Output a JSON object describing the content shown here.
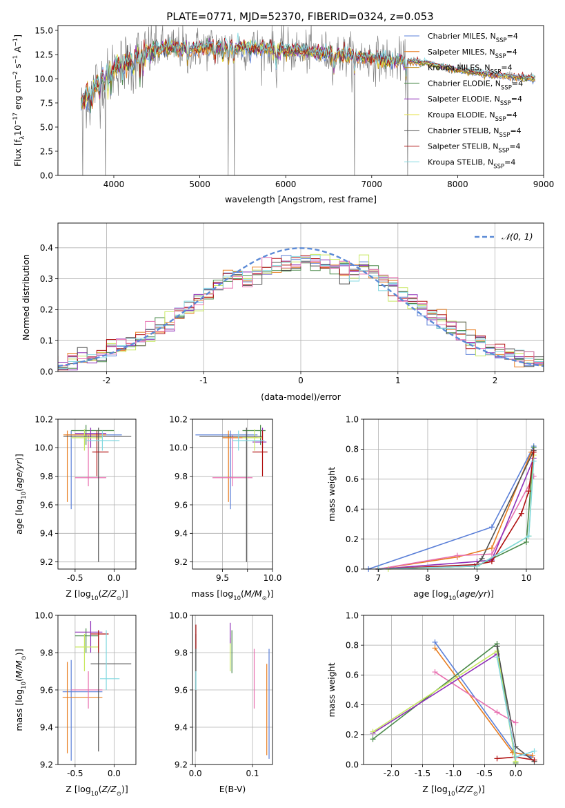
{
  "figure_title": "PLATE=0771, MJD=52370, FIBERID=0324, z=0.053",
  "colors": {
    "Chabrier MILES": "#5a7fd8",
    "Salpeter MILES": "#e87c1e",
    "Kroupa MILES": "#b8860b",
    "Chabrier ELODIE": "#4a8a4a",
    "Salpeter ELODIE": "#8e2fb8",
    "Kroupa ELODIE": "#e6e040",
    "Chabrier STELIB": "#505050",
    "Salpeter STELIB": "#b01010",
    "Kroupa STELIB": "#80d8e0",
    "pink": "#e870b0",
    "lime": "#c8e860",
    "data": "#808080"
  },
  "chart_data": [
    {
      "id": "spectrum",
      "type": "line",
      "xlabel": "wavelength [Angstrom, rest frame]",
      "ylabel": "Flux [f_λ 10^-17 erg cm^-2 s^-1 A^-1]",
      "xlim": [
        3350,
        9000
      ],
      "ylim": [
        0,
        15.5
      ],
      "xticks": [
        4000,
        5000,
        6000,
        7000,
        8000,
        9000
      ],
      "yticks": [
        0.0,
        2.5,
        5.0,
        7.5,
        10.0,
        12.5,
        15.0
      ],
      "wave_range": [
        3620,
        8900
      ],
      "approx_continuum": [
        [
          3620,
          7.5
        ],
        [
          3800,
          9.5
        ],
        [
          4000,
          11.2
        ],
        [
          4300,
          12.4
        ],
        [
          4600,
          13.3
        ],
        [
          4900,
          13.1
        ],
        [
          5200,
          13.4
        ],
        [
          5600,
          13.2
        ],
        [
          6000,
          12.9
        ],
        [
          6400,
          12.7
        ],
        [
          6800,
          12.3
        ],
        [
          7200,
          11.9
        ],
        [
          7600,
          11.7
        ],
        [
          8000,
          10.9
        ],
        [
          8400,
          10.4
        ],
        [
          8900,
          10.0
        ]
      ],
      "legend": [
        {
          "imf": "Chabrier",
          "lib": "MILES",
          "nssp": "4"
        },
        {
          "imf": "Salpeter",
          "lib": "MILES",
          "nssp": "4"
        },
        {
          "imf": "Kroupa",
          "lib": "MILES",
          "nssp": "4"
        },
        {
          "imf": "Chabrier",
          "lib": "ELODIE",
          "nssp": "4"
        },
        {
          "imf": "Salpeter",
          "lib": "ELODIE",
          "nssp": "4"
        },
        {
          "imf": "Kroupa",
          "lib": "ELODIE",
          "nssp": "4"
        },
        {
          "imf": "Chabrier",
          "lib": "STELIB",
          "nssp": "4"
        },
        {
          "imf": "Salpeter",
          "lib": "STELIB",
          "nssp": "4"
        },
        {
          "imf": "Kroupa",
          "lib": "STELIB",
          "nssp": "4"
        }
      ]
    },
    {
      "id": "residuals",
      "type": "step",
      "xlabel": "(data-model)/error",
      "ylabel": "Normed distribution",
      "xlim": [
        -2.5,
        2.5
      ],
      "ylim": [
        0,
        0.48
      ],
      "xticks": [
        -2,
        -1,
        0,
        1,
        2
      ],
      "yticks": [
        0.0,
        0.1,
        0.2,
        0.3,
        0.4
      ],
      "grid": true,
      "legend_label": "N(0,1)",
      "legend_position": "top-right"
    },
    {
      "id": "age_vs_Z",
      "type": "errorbar",
      "xlabel": "Z [log10(Z/Z_sun)]",
      "ylabel": "age [log10(age/yr)]",
      "xlim": [
        -0.72,
        0.28
      ],
      "ylim": [
        9.15,
        10.2
      ],
      "xticks": [
        -0.5,
        0.0
      ],
      "yticks": [
        9.2,
        9.4,
        9.6,
        9.8,
        10.0,
        10.2
      ],
      "grid": true,
      "points": [
        {
          "c": "#5a7fd8",
          "x": -0.55,
          "xe": [
            -0.62,
            0.1
          ],
          "y": 10.09,
          "ye": [
            9.57,
            10.12
          ]
        },
        {
          "c": "#e87c1e",
          "x": -0.6,
          "xe": [
            -0.65,
            -0.1
          ],
          "y": 10.09,
          "ye": [
            9.62,
            10.12
          ]
        },
        {
          "c": "#e870b0",
          "x": -0.33,
          "xe": [
            -0.5,
            -0.1
          ],
          "y": 9.79,
          "ye": [
            9.73,
            10.09
          ]
        },
        {
          "c": "#4a8a4a",
          "x": -0.36,
          "xe": [
            -0.55,
            0.0
          ],
          "y": 10.12,
          "ye": [
            10.02,
            10.16
          ]
        },
        {
          "c": "#8e2fb8",
          "x": -0.3,
          "xe": [
            -0.5,
            -0.1
          ],
          "y": 10.1,
          "ye": [
            10.0,
            10.14
          ]
        },
        {
          "c": "#c8e860",
          "x": -0.38,
          "xe": [
            -0.55,
            -0.15
          ],
          "y": 10.07,
          "ye": [
            9.98,
            10.13
          ]
        },
        {
          "c": "#505050",
          "x": -0.2,
          "xe": [
            -0.65,
            0.22
          ],
          "y": 10.08,
          "ye": [
            9.2,
            10.14
          ]
        },
        {
          "c": "#b01010",
          "x": -0.22,
          "xe": [
            -0.28,
            -0.07
          ],
          "y": 9.97,
          "ye": [
            9.8,
            10.12
          ]
        },
        {
          "c": "#80d8e0",
          "x": -0.15,
          "xe": [
            -0.35,
            0.07
          ],
          "y": 10.05,
          "ye": [
            9.98,
            10.12
          ]
        }
      ]
    },
    {
      "id": "age_vs_mass",
      "type": "errorbar",
      "xlabel": "mass [log10(M/M_sun)]",
      "ylabel": "",
      "xlim": [
        9.2,
        10.0
      ],
      "ylim": [
        9.15,
        10.2
      ],
      "xticks": [
        9.5,
        9.75,
        10.0
      ],
      "xticklabels": [
        "9.5",
        "",
        "10.0"
      ],
      "yticks": [
        9.2,
        9.4,
        9.6,
        9.8,
        10.0,
        10.2
      ],
      "grid": true,
      "points": [
        {
          "c": "#5a7fd8",
          "x": 9.58,
          "xe": [
            9.23,
            9.85
          ],
          "y": 10.09,
          "ye": [
            9.57,
            10.12
          ]
        },
        {
          "c": "#e87c1e",
          "x": 9.56,
          "xe": [
            9.5,
            9.85
          ],
          "y": 10.07,
          "ye": [
            9.62,
            10.12
          ]
        },
        {
          "c": "#e870b0",
          "x": 9.6,
          "xe": [
            9.4,
            9.8
          ],
          "y": 9.79,
          "ye": [
            9.73,
            10.09
          ]
        },
        {
          "c": "#4a8a4a",
          "x": 9.88,
          "xe": [
            9.7,
            9.93
          ],
          "y": 10.12,
          "ye": [
            10.02,
            10.16
          ]
        },
        {
          "c": "#8e2fb8",
          "x": 9.9,
          "xe": [
            9.8,
            9.94
          ],
          "y": 10.04,
          "ye": [
            10.0,
            10.14
          ]
        },
        {
          "c": "#c8e860",
          "x": 9.82,
          "xe": [
            9.7,
            9.9
          ],
          "y": 10.07,
          "ye": [
            9.98,
            10.13
          ]
        },
        {
          "c": "#505050",
          "x": 9.74,
          "xe": [
            9.27,
            9.9
          ],
          "y": 10.08,
          "ye": [
            9.2,
            10.14
          ]
        },
        {
          "c": "#b01010",
          "x": 9.9,
          "xe": [
            9.8,
            9.95
          ],
          "y": 9.97,
          "ye": [
            9.8,
            10.12
          ]
        },
        {
          "c": "#80d8e0",
          "x": 9.66,
          "xe": [
            9.6,
            9.92
          ],
          "y": 10.05,
          "ye": [
            9.98,
            10.12
          ]
        }
      ]
    },
    {
      "id": "mass_weight_vs_age",
      "type": "line",
      "xlabel": "age [log10(age/yr)]",
      "ylabel": "mass weight",
      "xlim": [
        6.7,
        10.35
      ],
      "ylim": [
        0,
        1.0
      ],
      "xticks": [
        7,
        8,
        9,
        10
      ],
      "yticks": [
        0.0,
        0.2,
        0.4,
        0.6,
        0.8,
        1.0
      ],
      "grid": true,
      "series": [
        {
          "c": "#5a7fd8",
          "points": [
            [
              6.8,
              0.0
            ],
            [
              9.3,
              0.28
            ],
            [
              10.15,
              0.82
            ]
          ]
        },
        {
          "c": "#e87c1e",
          "points": [
            [
              7.0,
              0.0
            ],
            [
              8.6,
              0.08
            ],
            [
              9.3,
              0.14
            ],
            [
              10.1,
              0.78
            ]
          ]
        },
        {
          "c": "#e870b0",
          "points": [
            [
              7.0,
              0.0
            ],
            [
              8.6,
              0.09
            ],
            [
              9.3,
              0.1
            ],
            [
              10.15,
              0.62
            ]
          ]
        },
        {
          "c": "#4a8a4a",
          "points": [
            [
              7.0,
              0.0
            ],
            [
              9.0,
              0.02
            ],
            [
              10.0,
              0.18
            ],
            [
              10.15,
              0.81
            ]
          ]
        },
        {
          "c": "#8e2fb8",
          "points": [
            [
              7.0,
              0.0
            ],
            [
              9.0,
              0.05
            ],
            [
              9.3,
              0.06
            ],
            [
              10.15,
              0.74
            ]
          ]
        },
        {
          "c": "#c8e860",
          "points": [
            [
              7.2,
              0.0
            ],
            [
              9.0,
              0.02
            ],
            [
              10.05,
              0.22
            ],
            [
              10.15,
              0.76
            ]
          ]
        },
        {
          "c": "#505050",
          "points": [
            [
              7.0,
              0.0
            ],
            [
              8.95,
              0.02
            ],
            [
              9.1,
              0.07
            ],
            [
              10.15,
              0.79
            ]
          ]
        },
        {
          "c": "#b01010",
          "points": [
            [
              7.0,
              0.0
            ],
            [
              9.0,
              0.03
            ],
            [
              9.3,
              0.05
            ],
            [
              9.9,
              0.37
            ],
            [
              10.05,
              0.52
            ],
            [
              10.15,
              0.78
            ]
          ]
        },
        {
          "c": "#80d8e0",
          "points": [
            [
              7.0,
              0.0
            ],
            [
              9.0,
              0.02
            ],
            [
              10.05,
              0.22
            ],
            [
              10.15,
              0.72
            ]
          ]
        }
      ]
    },
    {
      "id": "mass_vs_Z",
      "type": "errorbar",
      "xlabel": "Z [log10(Z/Z_sun)]",
      "ylabel": "mass [log10(M/M_sun)]",
      "xlim": [
        -0.72,
        0.28
      ],
      "ylim": [
        9.2,
        10.0
      ],
      "xticks": [
        -0.5,
        0.0
      ],
      "yticks": [
        9.2,
        9.4,
        9.6,
        9.8,
        10.0
      ],
      "grid": true,
      "points": [
        {
          "c": "#5a7fd8",
          "x": -0.55,
          "xe": [
            -0.66,
            -0.15
          ],
          "y": 9.59,
          "ye": [
            9.22,
            9.76
          ]
        },
        {
          "c": "#e87c1e",
          "x": -0.6,
          "xe": [
            -0.66,
            -0.15
          ],
          "y": 9.56,
          "ye": [
            9.26,
            9.75
          ]
        },
        {
          "c": "#e870b0",
          "x": -0.33,
          "xe": [
            -0.55,
            -0.15
          ],
          "y": 9.6,
          "ye": [
            9.5,
            9.7
          ]
        },
        {
          "c": "#4a8a4a",
          "x": -0.36,
          "xe": [
            -0.5,
            -0.2
          ],
          "y": 9.89,
          "ye": [
            9.8,
            9.93
          ]
        },
        {
          "c": "#8e2fb8",
          "x": -0.3,
          "xe": [
            -0.5,
            -0.15
          ],
          "y": 9.91,
          "ye": [
            9.8,
            9.97
          ]
        },
        {
          "c": "#c8e860",
          "x": -0.38,
          "xe": [
            -0.5,
            -0.2
          ],
          "y": 9.83,
          "ye": [
            9.7,
            9.9
          ]
        },
        {
          "c": "#505050",
          "x": -0.2,
          "xe": [
            -0.3,
            0.22
          ],
          "y": 9.74,
          "ye": [
            9.27,
            9.92
          ]
        },
        {
          "c": "#b01010",
          "x": -0.2,
          "xe": [
            -0.3,
            -0.07
          ],
          "y": 9.9,
          "ye": [
            9.8,
            9.92
          ]
        },
        {
          "c": "#80d8e0",
          "x": -0.1,
          "xe": [
            -0.18,
            0.07
          ],
          "y": 9.66,
          "ye": [
            9.6,
            9.92
          ]
        }
      ]
    },
    {
      "id": "mass_vs_ebv",
      "type": "errorbar",
      "xlabel": "E(B-V)",
      "ylabel": "",
      "xlim": [
        -0.005,
        0.135
      ],
      "ylim": [
        9.2,
        10.0
      ],
      "xticks": [
        0.0,
        0.1
      ],
      "yticks": [
        9.2,
        9.4,
        9.6,
        9.8,
        10.0
      ],
      "grid": true,
      "points": [
        {
          "c": "#505050",
          "x": 0.001,
          "y": 9.6,
          "ye": [
            9.27,
            9.9
          ]
        },
        {
          "c": "#b01010",
          "x": 0.001,
          "y": 9.9,
          "ye": [
            9.82,
            9.95
          ]
        },
        {
          "c": "#80d8e0",
          "x": 0.001,
          "y": 9.65,
          "ye": [
            9.6,
            9.7
          ]
        },
        {
          "c": "#c8e860",
          "x": 0.061,
          "y": 9.8,
          "ye": [
            9.7,
            9.88
          ]
        },
        {
          "c": "#8e2fb8",
          "x": 0.061,
          "y": 9.9,
          "ye": [
            9.85,
            9.96
          ]
        },
        {
          "c": "#4a8a4a",
          "x": 0.064,
          "y": 9.8,
          "ye": [
            9.69,
            9.92
          ]
        },
        {
          "c": "#e870b0",
          "x": 0.103,
          "y": 9.62,
          "ye": [
            9.5,
            9.82
          ]
        },
        {
          "c": "#e87c1e",
          "x": 0.125,
          "y": 9.55,
          "ye": [
            9.25,
            9.74
          ]
        },
        {
          "c": "#5a7fd8",
          "x": 0.129,
          "y": 9.6,
          "ye": [
            9.23,
            9.82
          ]
        }
      ]
    },
    {
      "id": "mass_weight_vs_Z",
      "type": "line",
      "xlabel": "Z [log10(Z/Z_sun)]",
      "ylabel": "mass weight",
      "xlim": [
        -2.45,
        0.45
      ],
      "ylim": [
        0,
        1.0
      ],
      "xticks": [
        -2.0,
        -1.5,
        -1.0,
        -0.5,
        0.0
      ],
      "yticks": [
        0.0,
        0.2,
        0.4,
        0.6,
        0.8,
        1.0
      ],
      "grid": true,
      "series": [
        {
          "c": "#5a7fd8",
          "points": [
            [
              -1.3,
              0.82
            ],
            [
              -0.02,
              0.08
            ],
            [
              0.25,
              0.05
            ]
          ]
        },
        {
          "c": "#e87c1e",
          "points": [
            [
              -1.3,
              0.78
            ],
            [
              -0.05,
              0.08
            ],
            [
              0.27,
              0.06
            ]
          ]
        },
        {
          "c": "#e870b0",
          "points": [
            [
              -1.3,
              0.62
            ],
            [
              -0.3,
              0.35
            ],
            [
              0.0,
              0.28
            ]
          ]
        },
        {
          "c": "#4a8a4a",
          "points": [
            [
              -2.3,
              0.17
            ],
            [
              -0.3,
              0.81
            ],
            [
              0.0,
              0.01
            ]
          ]
        },
        {
          "c": "#8e2fb8",
          "points": [
            [
              -2.3,
              0.21
            ],
            [
              -0.3,
              0.74
            ],
            [
              0.0,
              0.05
            ]
          ]
        },
        {
          "c": "#c8e860",
          "points": [
            [
              -2.3,
              0.22
            ],
            [
              -0.3,
              0.76
            ],
            [
              0.0,
              0.02
            ]
          ]
        },
        {
          "c": "#505050",
          "points": [
            [
              -0.3,
              0.79
            ],
            [
              0.0,
              0.12
            ],
            [
              0.3,
              0.02
            ]
          ]
        },
        {
          "c": "#b01010",
          "points": [
            [
              -0.3,
              0.04
            ],
            [
              0.0,
              0.05
            ],
            [
              0.3,
              0.03
            ]
          ]
        },
        {
          "c": "#80d8e0",
          "points": [
            [
              -0.3,
              0.72
            ],
            [
              0.0,
              0.05
            ],
            [
              0.3,
              0.09
            ]
          ]
        }
      ]
    }
  ]
}
